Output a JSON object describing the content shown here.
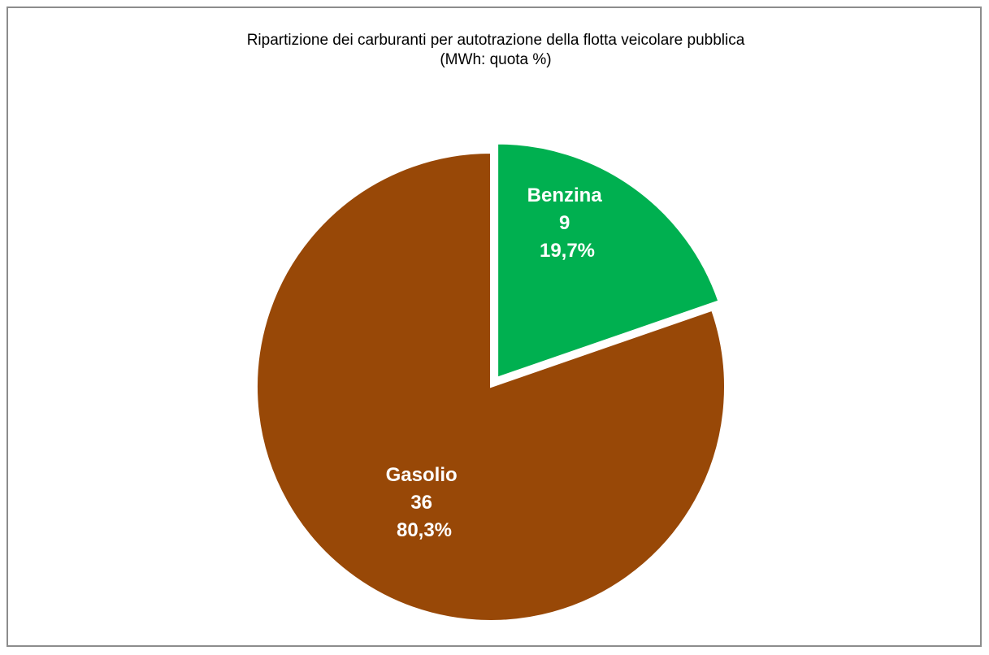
{
  "chart_data": {
    "type": "pie",
    "title": "Ripartizione dei carburanti per autotrazione della flotta veicolare pubblica",
    "subtitle": "(MWh: quota %)",
    "slices": [
      {
        "name": "Benzina",
        "value": 9,
        "percent": "19,7%",
        "share": 0.197,
        "color": "#00b050",
        "exploded": true
      },
      {
        "name": "Gasolio",
        "value": 36,
        "percent": "80,3%",
        "share": 0.803,
        "color": "#984807",
        "exploded": false
      }
    ]
  }
}
